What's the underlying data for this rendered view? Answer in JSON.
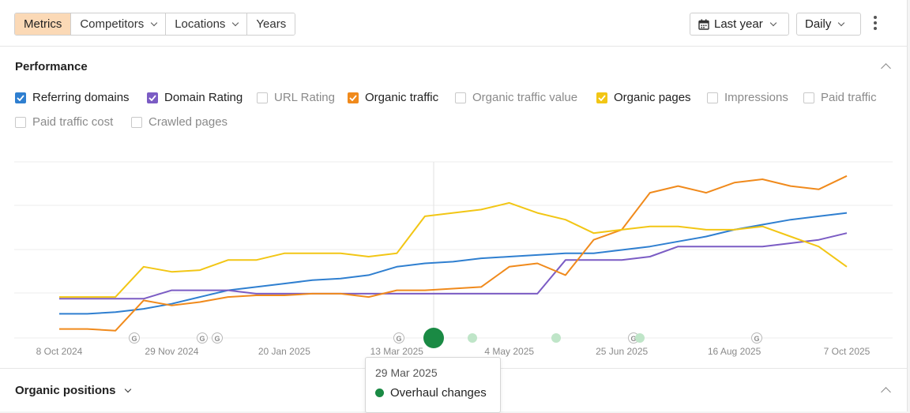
{
  "toolbar": {
    "tabs": [
      {
        "label": "Metrics",
        "active": true
      },
      {
        "label": "Competitors",
        "has_dropdown": true
      },
      {
        "label": "Locations",
        "has_dropdown": true
      },
      {
        "label": "Years"
      }
    ],
    "date_range": {
      "label": "Last year",
      "icon": "calendar-icon"
    },
    "granularity": {
      "label": "Daily"
    },
    "more_icon": "kebab-menu-icon"
  },
  "performance": {
    "title": "Performance",
    "metrics": [
      {
        "label": "Referring domains",
        "checked": true,
        "color": "#2f7fd0"
      },
      {
        "label": "Domain Rating",
        "checked": true,
        "color": "#7b5cc4"
      },
      {
        "label": "URL Rating",
        "checked": false
      },
      {
        "label": "Organic traffic",
        "checked": true,
        "color": "#f08a1c"
      },
      {
        "label": "Organic traffic value",
        "checked": false
      },
      {
        "label": "Organic pages",
        "checked": true,
        "color": "#f2c615"
      },
      {
        "label": "Impressions",
        "checked": false
      },
      {
        "label": "Paid traffic",
        "checked": false
      },
      {
        "label": "Paid traffic cost",
        "checked": false
      },
      {
        "label": "Crawled pages",
        "checked": false
      }
    ]
  },
  "chart_data": {
    "type": "line",
    "x_ticks": [
      "8 Oct 2024",
      "29 Nov 2024",
      "20 Jan 2025",
      "13 Mar 2025",
      "4 May 2025",
      "25 Jun 2025",
      "16 Aug 2025",
      "7 Oct 2025"
    ],
    "grid": true,
    "annotations": {
      "google_updates": [
        "Nov 2024",
        "Dec 2024",
        "Dec 2024",
        "Mar 2025",
        "Jun 2025",
        "Aug 2025"
      ],
      "selected_event": {
        "date": "29 Mar 2025",
        "label": "Overhaul changes",
        "color": "#1a8a44"
      }
    },
    "series": [
      {
        "name": "Referring domains",
        "color": "#2f7fd0",
        "values": [
          12,
          12,
          13,
          15,
          18,
          22,
          26,
          28,
          30,
          32,
          33,
          35,
          40,
          42,
          43,
          45,
          46,
          47,
          48,
          48,
          50,
          52,
          55,
          58,
          62,
          65,
          68,
          70,
          72
        ]
      },
      {
        "name": "Domain Rating",
        "color": "#7b5cc4",
        "values": [
          21,
          21,
          21,
          21,
          26,
          26,
          26,
          24,
          24,
          24,
          24,
          24,
          24,
          24,
          24,
          24,
          24,
          24,
          44,
          44,
          44,
          46,
          52,
          52,
          52,
          52,
          54,
          56,
          60
        ]
      },
      {
        "name": "Organic traffic",
        "color": "#f08a1c",
        "values": [
          3,
          3,
          2,
          20,
          17,
          19,
          22,
          23,
          23,
          24,
          24,
          22,
          26,
          26,
          27,
          28,
          40,
          42,
          35,
          56,
          62,
          84,
          88,
          84,
          90,
          92,
          88,
          86,
          94
        ]
      },
      {
        "name": "Organic pages",
        "color": "#f2c615",
        "values": [
          22,
          22,
          22,
          40,
          37,
          38,
          44,
          44,
          48,
          48,
          48,
          46,
          48,
          70,
          72,
          74,
          78,
          72,
          68,
          60,
          62,
          64,
          64,
          62,
          62,
          64,
          58,
          52,
          40
        ]
      }
    ]
  },
  "tooltip": {
    "date": "29 Mar 2025",
    "event": "Overhaul changes"
  },
  "organic_positions": {
    "title": "Organic positions"
  }
}
